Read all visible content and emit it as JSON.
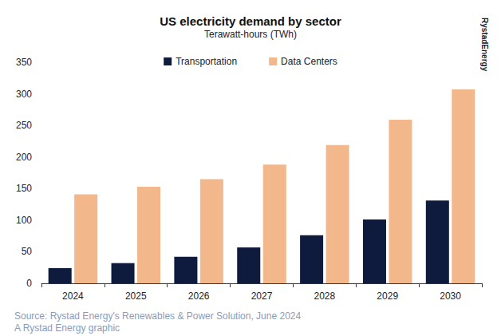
{
  "chart_data": {
    "type": "bar",
    "title": "US electricity demand by sector",
    "subtitle": "Terawatt-hours (TWh)",
    "categories": [
      "2024",
      "2025",
      "2026",
      "2027",
      "2028",
      "2029",
      "2030"
    ],
    "series": [
      {
        "name": "Transportation",
        "color": "#0f1b3d",
        "values": [
          24,
          32,
          42,
          57,
          76,
          101,
          131
        ]
      },
      {
        "name": "Data Centers",
        "color": "#f2b88c",
        "values": [
          141,
          153,
          165,
          188,
          219,
          259,
          307
        ]
      }
    ],
    "ylim": [
      0,
      350
    ],
    "yticks": [
      0,
      50,
      100,
      150,
      200,
      250,
      300,
      350
    ],
    "grid": false,
    "legend": "top",
    "annotations": [
      "Source: Rystad Energy's Renewables & Power Solution, June 2024",
      "A Rystad Energy graphic",
      "RystadEnergy"
    ]
  }
}
